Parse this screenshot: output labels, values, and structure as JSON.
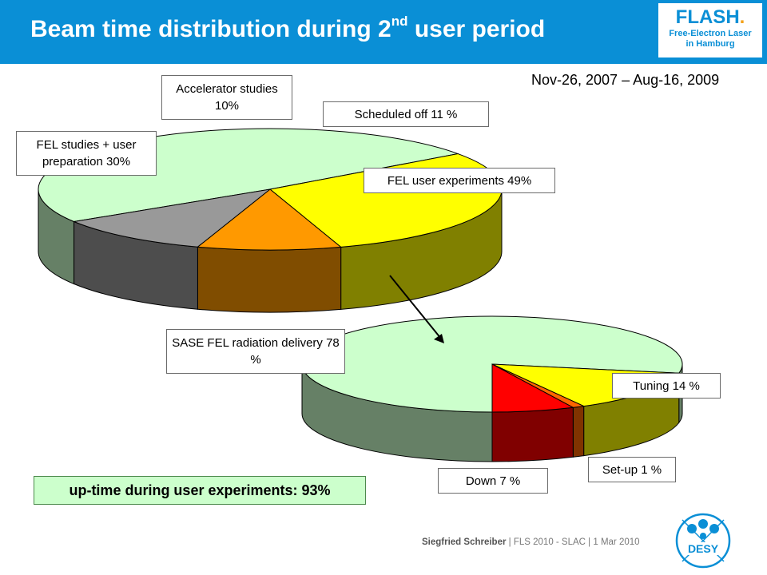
{
  "header": {
    "title_main": "Beam time distribution during 2",
    "title_sup": "nd",
    "title_end": " user period",
    "logo_word": "FLASH",
    "logo_dot": ".",
    "logo_line1": "Free-Electron Laser",
    "logo_line2": "in Hamburg"
  },
  "date_range": "Nov-26, 2007 – Aug-16, 2009",
  "callout": "up-time during user experiments: 93%",
  "footer": {
    "author": "Siegfried Schreiber",
    "rest": "  |  FLS 2010 - SLAC  |  1 Mar 2010",
    "logo_text": "DESY"
  },
  "chart_data": [
    {
      "type": "pie",
      "title": "",
      "slices": [
        {
          "label": "FEL user experiments 49%",
          "value": 49,
          "color": "#ccffcc"
        },
        {
          "label": "FEL studies + user preparation 30%",
          "value": 30,
          "color": "#ffff00"
        },
        {
          "label": "Accelerator studies 10%",
          "value": 10,
          "color": "#ff9900"
        },
        {
          "label": "Scheduled off 11 %",
          "value": 11,
          "color": "#999999"
        }
      ]
    },
    {
      "type": "pie",
      "title": "",
      "slices": [
        {
          "label": "SASE FEL radiation delivery 78 %",
          "value": 78,
          "color": "#ccffcc"
        },
        {
          "label": "Tuning 14 %",
          "value": 14,
          "color": "#ffff00"
        },
        {
          "label": "Set-up 1 %",
          "value": 1,
          "color": "#ff6600"
        },
        {
          "label": "Down 7 %",
          "value": 7,
          "color": "#ff0000"
        }
      ]
    }
  ]
}
